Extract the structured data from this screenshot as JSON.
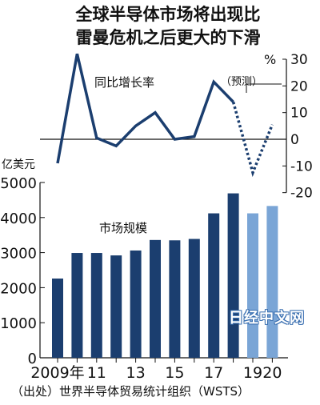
{
  "header": {
    "title_line1": "全球半导体市场将出现比",
    "title_line2": "雷曼危机之后更大的下滑"
  },
  "source": "（出处）世界半导体贸易统计组织（WSTS）",
  "watermark": "日经中文网",
  "colors": {
    "bar_actual": "#1b3e6f",
    "bar_forecast": "#7aa5d6",
    "line": "#1b3e6f"
  },
  "chart_data": [
    {
      "type": "line",
      "title": "同比增长率",
      "unit_label": "%",
      "annotation": "（预测）",
      "x": [
        2009,
        2010,
        2011,
        2012,
        2013,
        2014,
        2015,
        2016,
        2017,
        2018,
        2019,
        2020
      ],
      "values": [
        -9,
        32,
        0.5,
        -2.5,
        5,
        10,
        0,
        1,
        21.5,
        14,
        -12.5,
        5.5
      ],
      "forecast_from": 2019,
      "ylim": [
        -20,
        30
      ],
      "yticks": [
        "30",
        "20",
        "10",
        "0",
        "-10",
        "-20"
      ]
    },
    {
      "type": "bar",
      "title": "市场规模",
      "unit_label": "亿美元",
      "categories": [
        "2009年",
        "",
        "11",
        "",
        "13",
        "",
        "15",
        "",
        "17",
        "",
        "19",
        "20"
      ],
      "values": [
        2260,
        2990,
        2990,
        2920,
        3060,
        3360,
        3350,
        3390,
        4120,
        4690,
        4120,
        4330
      ],
      "forecast_from_index": 10,
      "ylim": [
        0,
        5000
      ],
      "yticks": [
        "5000",
        "4000",
        "3000",
        "2000",
        "1000",
        "0"
      ]
    }
  ]
}
